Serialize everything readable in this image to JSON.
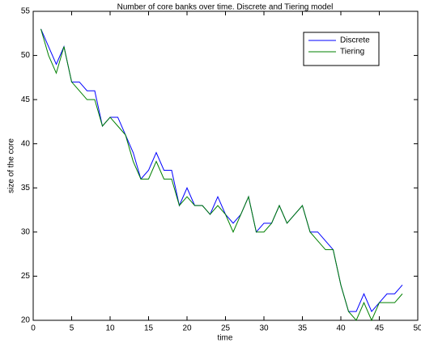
{
  "chart_data": {
    "type": "line",
    "title": "Number of core banks over time. Discrete and Tiering model",
    "x_label": "time",
    "y_label": "size of the core",
    "x": [
      1,
      2,
      3,
      4,
      5,
      6,
      7,
      8,
      9,
      10,
      11,
      12,
      13,
      14,
      15,
      16,
      17,
      18,
      19,
      20,
      21,
      22,
      23,
      24,
      25,
      26,
      27,
      28,
      29,
      30,
      31,
      32,
      33,
      34,
      35,
      36,
      37,
      38,
      39,
      40,
      41,
      42,
      43,
      44,
      45,
      46,
      47,
      48
    ],
    "series": [
      {
        "name": "Discrete",
        "color": "#0000ff",
        "values": [
          53,
          51,
          49,
          51,
          47,
          47,
          46,
          46,
          42,
          43,
          43,
          41,
          39,
          36,
          37,
          39,
          37,
          37,
          33,
          35,
          33,
          33,
          32,
          34,
          32,
          31,
          32,
          34,
          30,
          31,
          31,
          33,
          31,
          32,
          33,
          30,
          30,
          29,
          28,
          24,
          21,
          21,
          23,
          21,
          22,
          23,
          23,
          24
        ]
      },
      {
        "name": "Tiering",
        "color": "#008000",
        "values": [
          53,
          50,
          48,
          51,
          47,
          46,
          45,
          45,
          42,
          43,
          42,
          41,
          38,
          36,
          36,
          38,
          36,
          36,
          33,
          34,
          33,
          33,
          32,
          33,
          32,
          30,
          32,
          34,
          30,
          30,
          31,
          33,
          31,
          32,
          33,
          30,
          29,
          28,
          28,
          24,
          21,
          20,
          22,
          20,
          22,
          22,
          22,
          23
        ]
      }
    ],
    "xlim": [
      0,
      50
    ],
    "ylim": [
      20,
      55
    ],
    "xticks": [
      0,
      5,
      10,
      15,
      20,
      25,
      30,
      35,
      40,
      45,
      50
    ],
    "yticks": [
      20,
      25,
      30,
      35,
      40,
      45,
      50,
      55
    ],
    "legend": "northeast"
  }
}
